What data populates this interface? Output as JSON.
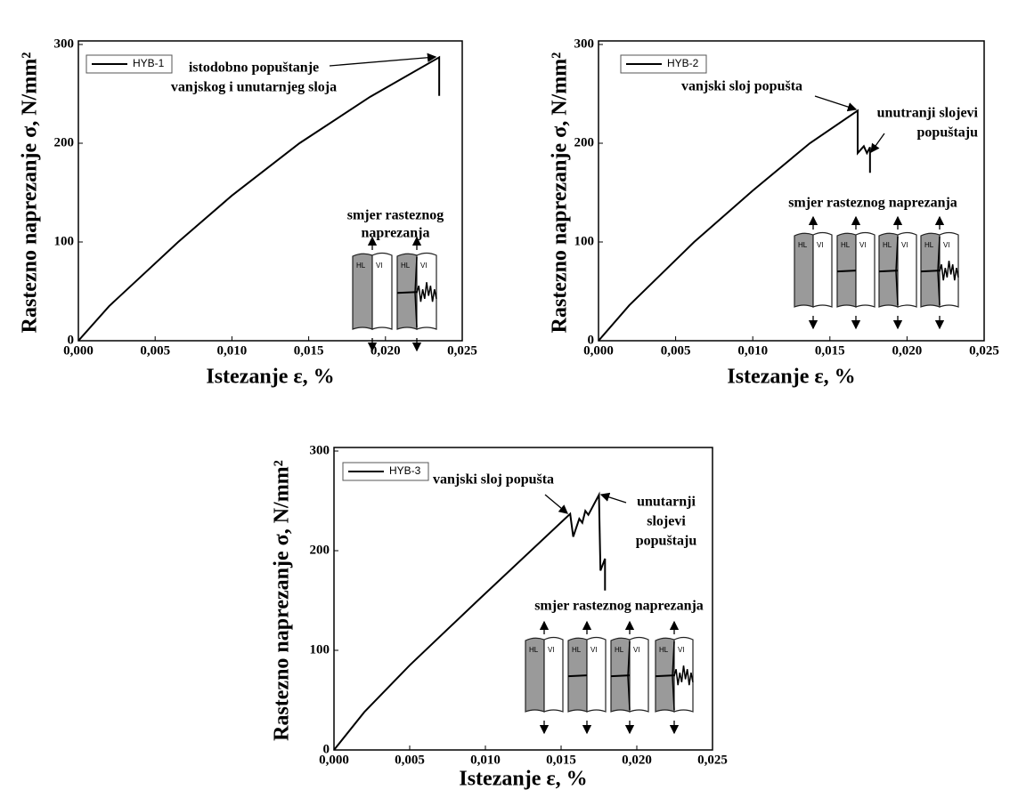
{
  "chart_data": [
    {
      "type": "line",
      "x_label": "Istezanje ε, %",
      "y_label": "Rastezno naprezanje σ, N/mm²",
      "xlim": [
        0,
        0.025
      ],
      "ylim": [
        0,
        300
      ],
      "xticks": [
        {
          "value": 0,
          "label": "0,000"
        },
        {
          "value": 0.005,
          "label": "0,005"
        },
        {
          "value": 0.01,
          "label": "0,010"
        },
        {
          "value": 0.015,
          "label": "0,015"
        },
        {
          "value": 0.02,
          "label": "0,020"
        },
        {
          "value": 0.025,
          "label": "0,025"
        }
      ],
      "yticks": [
        0,
        100,
        200,
        300
      ],
      "series": [
        {
          "name": "HYB-1",
          "color": "#000000",
          "x": [
            0,
            0.002,
            0.0065,
            0.01,
            0.0144,
            0.019,
            0.0235,
            0.0235
          ],
          "values": [
            0,
            35,
            100,
            147,
            200,
            247,
            287,
            248
          ]
        }
      ],
      "annotations": [
        {
          "lines": [
            "istodobno popuštanje",
            "vanjskog i unutarnjeg sloja"
          ]
        }
      ],
      "inset_caption": [
        "smjer rasteznog",
        "naprezanja"
      ],
      "specimen_labels": [
        [
          "HL",
          "VI"
        ],
        [
          "HL",
          "VI"
        ]
      ]
    },
    {
      "type": "line",
      "x_label": "Istezanje ε, %",
      "y_label": "Rastezno naprezanje σ, N/mm²",
      "xlim": [
        0,
        0.025
      ],
      "ylim": [
        0,
        300
      ],
      "xticks": [
        {
          "value": 0,
          "label": "0,000"
        },
        {
          "value": 0.005,
          "label": "0,005"
        },
        {
          "value": 0.01,
          "label": "0,010"
        },
        {
          "value": 0.015,
          "label": "0,015"
        },
        {
          "value": 0.02,
          "label": "0,020"
        },
        {
          "value": 0.025,
          "label": "0,025"
        }
      ],
      "yticks": [
        0,
        100,
        200,
        300
      ],
      "series": [
        {
          "name": "HYB-2",
          "color": "#000000",
          "x": [
            0,
            0.002,
            0.0062,
            0.01,
            0.0137,
            0.0168,
            0.0168,
            0.0172,
            0.0174,
            0.0176,
            0.0176
          ],
          "values": [
            0,
            36,
            100,
            152,
            200,
            233,
            190,
            197,
            190,
            196,
            170
          ]
        }
      ],
      "annotations": [
        {
          "lines": [
            "vanjski sloj popušta"
          ]
        },
        {
          "lines": [
            "unutranji slojevi",
            "popuštaju"
          ]
        }
      ],
      "inset_caption": [
        "smjer rasteznog naprezanja"
      ],
      "specimen_labels": [
        [
          "HL",
          "VI"
        ],
        [
          "HL",
          "VI"
        ],
        [
          "HL",
          "VI"
        ],
        [
          "HL",
          "VI"
        ]
      ]
    },
    {
      "type": "line",
      "x_label": "Istezanje ε, %",
      "y_label": "Rastezno naprezanje σ, N/mm²",
      "xlim": [
        0,
        0.025
      ],
      "ylim": [
        0,
        300
      ],
      "xticks": [
        {
          "value": 0,
          "label": "0,000"
        },
        {
          "value": 0.005,
          "label": "0,005"
        },
        {
          "value": 0.01,
          "label": "0,010"
        },
        {
          "value": 0.015,
          "label": "0,015"
        },
        {
          "value": 0.02,
          "label": "0,020"
        },
        {
          "value": 0.025,
          "label": "0,025"
        }
      ],
      "yticks": [
        0,
        100,
        200,
        300
      ],
      "series": [
        {
          "name": "HYB-3",
          "color": "#000000",
          "x": [
            0,
            0.002,
            0.005,
            0.0095,
            0.0156,
            0.0158,
            0.0162,
            0.0164,
            0.0166,
            0.0168,
            0.0175,
            0.0176,
            0.0178,
            0.0179,
            0.0179
          ],
          "values": [
            0,
            38,
            85,
            150,
            237,
            214,
            232,
            228,
            240,
            236,
            256,
            180,
            188,
            192,
            160
          ]
        }
      ],
      "annotations": [
        {
          "lines": [
            "vanjski sloj popušta"
          ]
        },
        {
          "lines": [
            "unutarnji",
            "slojevi",
            "popuštaju"
          ]
        }
      ],
      "inset_caption": [
        "smjer rasteznog naprezanja"
      ],
      "specimen_labels": [
        [
          "HL",
          "VI"
        ],
        [
          "HL",
          "VI"
        ],
        [
          "HL",
          "VI"
        ],
        [
          "HL",
          "VI"
        ]
      ]
    }
  ]
}
